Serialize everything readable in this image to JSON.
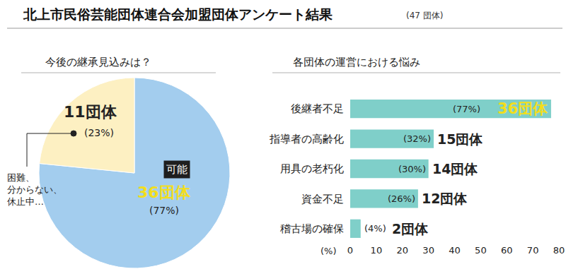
{
  "title": "北上市民俗芸能団体連合会加盟団体アンケート結果",
  "subtitle": "(47 団体)",
  "chart_data": [
    {
      "type": "pie",
      "title": "今後の継承見込みは？",
      "categories": [
        "可能",
        "困難、\n分からない、\n休止中…"
      ],
      "values": [
        36,
        11
      ],
      "value_labels": [
        "36団体",
        "11団体"
      ],
      "percent_labels": [
        "(77%)",
        "(23%)"
      ],
      "colors": [
        "#a3cdee",
        "#fdf0c2"
      ],
      "data_labels": true
    },
    {
      "type": "bar",
      "orientation": "horizontal",
      "title": "各団体の運営における悩み",
      "xlabel": "(%)",
      "categories": [
        "後継者不足",
        "指導者の高齢化",
        "用具の老朽化",
        "資金不足",
        "稽古場の確保"
      ],
      "values": [
        77,
        32,
        30,
        26,
        4
      ],
      "value_labels": [
        "(77%)",
        "(32%)",
        "(30%)",
        "(26%)",
        "(4%)"
      ],
      "count_labels": [
        "36団体",
        "15団体",
        "14団体",
        "12団体",
        "2団体"
      ],
      "color": "#7fcfc9",
      "xlim": [
        0,
        80
      ],
      "xticks": [
        0,
        10,
        20,
        30,
        40,
        50,
        60,
        70,
        80
      ],
      "grid": false,
      "data_labels": true
    }
  ]
}
